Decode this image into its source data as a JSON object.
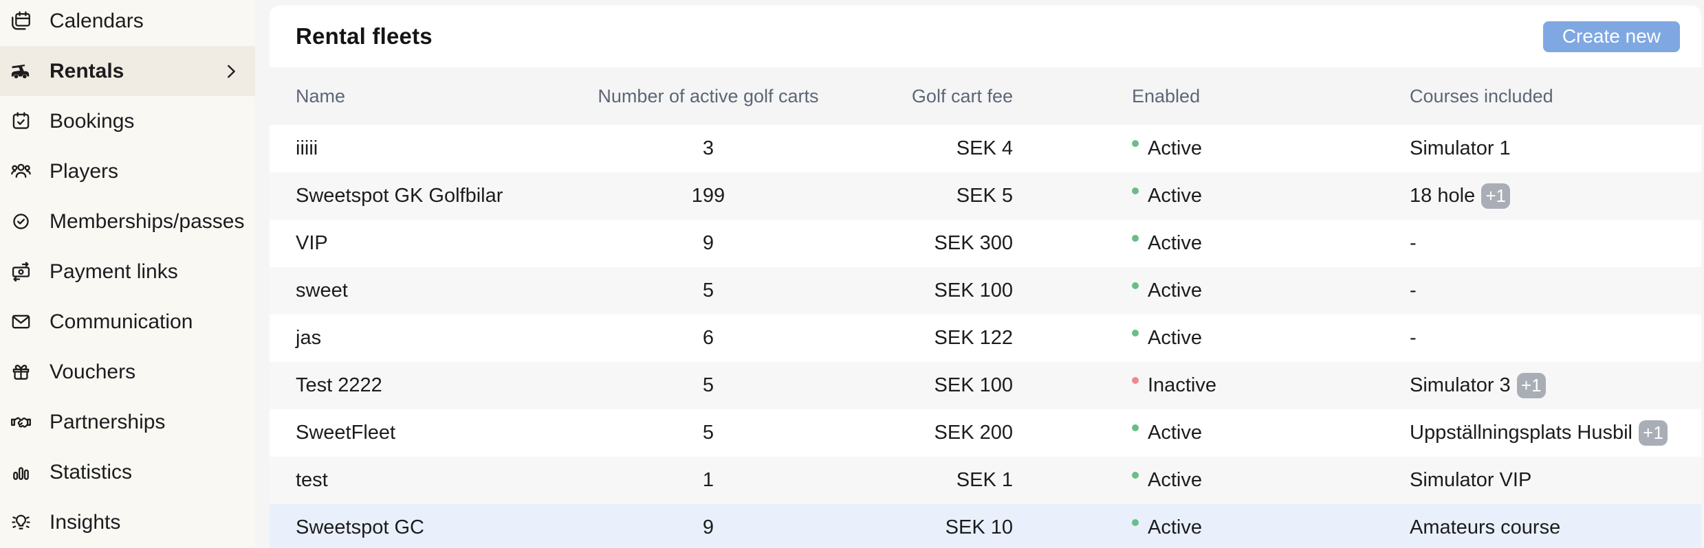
{
  "colors": {
    "accent_button": "#7fa8e2",
    "active_dot": "#6abd88",
    "inactive_dot": "#ee8a8a",
    "badge_bg": "#a9aeb6",
    "row_highlight": "#e9f0fb",
    "sidebar_bg": "#faf8f3",
    "sidebar_selected_bg": "#f0ece4"
  },
  "sidebar": {
    "items": [
      {
        "label": "Calendars",
        "icon": "calendars-icon"
      },
      {
        "label": "Rentals",
        "icon": "golf-cart-icon",
        "selected": true
      },
      {
        "label": "Bookings",
        "icon": "bookings-calendar-icon"
      },
      {
        "label": "Players",
        "icon": "players-icon"
      },
      {
        "label": "Memberships/passes",
        "icon": "membership-badge-icon"
      },
      {
        "label": "Payment links",
        "icon": "payment-links-icon"
      },
      {
        "label": "Communication",
        "icon": "communication-envelope-icon"
      },
      {
        "label": "Vouchers",
        "icon": "vouchers-gift-icon"
      },
      {
        "label": "Partnerships",
        "icon": "partnerships-handshake-icon"
      },
      {
        "label": "Statistics",
        "icon": "statistics-bars-icon"
      },
      {
        "label": "Insights",
        "icon": "insights-bulb-icon"
      }
    ]
  },
  "header": {
    "title": "Rental fleets",
    "create_button_label": "Create new"
  },
  "table": {
    "columns": [
      "Name",
      "Number of active golf carts",
      "Golf cart fee",
      "Enabled",
      "Courses included"
    ],
    "rows": [
      {
        "name": "iiiii",
        "active_carts": "3",
        "fee": "SEK 4",
        "status": "Active",
        "status_active": true,
        "courses": "Simulator 1"
      },
      {
        "name": "Sweetspot GK Golfbilar",
        "active_carts": "199",
        "fee": "SEK 5",
        "status": "Active",
        "status_active": true,
        "courses": "18 hole",
        "courses_badge": "+1"
      },
      {
        "name": "VIP",
        "active_carts": "9",
        "fee": "SEK 300",
        "status": "Active",
        "status_active": true,
        "courses": "-"
      },
      {
        "name": "sweet",
        "active_carts": "5",
        "fee": "SEK 100",
        "status": "Active",
        "status_active": true,
        "courses": "-"
      },
      {
        "name": "jas",
        "active_carts": "6",
        "fee": "SEK 122",
        "status": "Active",
        "status_active": true,
        "courses": "-"
      },
      {
        "name": "Test 2222",
        "active_carts": "5",
        "fee": "SEK 100",
        "status": "Inactive",
        "status_active": false,
        "courses": "Simulator 3",
        "courses_badge": "+1"
      },
      {
        "name": "SweetFleet",
        "active_carts": "5",
        "fee": "SEK 200",
        "status": "Active",
        "status_active": true,
        "courses": "Uppställningsplats Husbil",
        "courses_badge": "+1"
      },
      {
        "name": "test",
        "active_carts": "1",
        "fee": "SEK 1",
        "status": "Active",
        "status_active": true,
        "courses": "Simulator VIP"
      },
      {
        "name": "Sweetspot GC",
        "active_carts": "9",
        "fee": "SEK 10",
        "status": "Active",
        "status_active": true,
        "courses": "Amateurs course",
        "highlighted": true
      }
    ]
  }
}
